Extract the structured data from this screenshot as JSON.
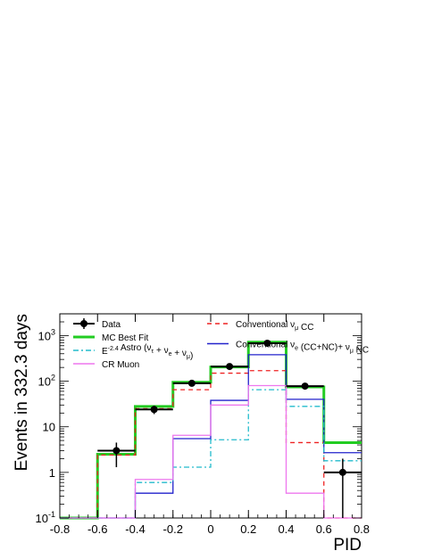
{
  "chart_data": {
    "type": "line",
    "xlabel": "PID",
    "ylabel": "Events in 332.3 days",
    "xlim": [
      -0.8,
      0.8
    ],
    "ylim": [
      0.1,
      3000
    ],
    "yscale": "log",
    "x_ticks": [
      "-0.8",
      "-0.6",
      "-0.4",
      "-0.2",
      "0",
      "0.2",
      "0.4",
      "0.6",
      "0.8"
    ],
    "y_ticks": [
      {
        "base": "10",
        "exp": "-1",
        "value": 0.1
      },
      {
        "base": "1",
        "exp": "",
        "value": 1
      },
      {
        "base": "10",
        "exp": "",
        "value": 10
      },
      {
        "base": "10",
        "exp": "2",
        "value": 100
      },
      {
        "base": "10",
        "exp": "3",
        "value": 1000
      }
    ],
    "bin_edges": [
      -0.8,
      -0.6,
      -0.4,
      -0.2,
      0.0,
      0.2,
      0.4,
      0.6,
      0.8
    ],
    "series": [
      {
        "key": "mc",
        "name": "MC Best Fit",
        "kind": "hist",
        "color": "#22cc22",
        "dash": "",
        "values": [
          0.1,
          2.5,
          28,
          95,
          205,
          720,
          75,
          4.5
        ]
      },
      {
        "key": "conv_numu",
        "name": "Conventional ν_μ CC",
        "kind": "hist",
        "color": "#ee2222",
        "dash": "5,4",
        "values": [
          0.1,
          2.4,
          25,
          65,
          150,
          170,
          4.5,
          0.1
        ]
      },
      {
        "key": "conv_nue",
        "name": "Conventional ν_e (CC+NC)+ ν_μ NC",
        "kind": "hist",
        "color": "#2222cc",
        "dash": "",
        "values": [
          0.1,
          0.1,
          0.35,
          5.5,
          38,
          380,
          40,
          2.7
        ]
      },
      {
        "key": "astro",
        "name": "E^-2.4 Astro (ν_τ + ν_e + ν_μ)",
        "kind": "hist",
        "color": "#22bbcc",
        "dash": "6,3,2,3",
        "values": [
          0.1,
          0.1,
          0.6,
          1.3,
          5.2,
          65,
          28,
          1.8
        ]
      },
      {
        "key": "crmuon",
        "name": "CR Muon",
        "kind": "hist",
        "color": "#ee77ee",
        "dash": "",
        "values": [
          0.1,
          0.1,
          0.7,
          6.5,
          30,
          80,
          0.35,
          0.1
        ]
      },
      {
        "key": "data",
        "name": "Data",
        "kind": "points",
        "color": "#000000",
        "x": [
          -0.5,
          -0.3,
          -0.1,
          0.1,
          0.3,
          0.5,
          0.7
        ],
        "values": [
          3,
          24,
          90,
          210,
          680,
          78,
          1
        ],
        "err_low": [
          1.3,
          19,
          80,
          195,
          655,
          69,
          0.1
        ],
        "err_high": [
          4.5,
          29,
          100,
          225,
          705,
          87,
          2
        ]
      }
    ],
    "legend": {
      "placement": "top-left",
      "entries": [
        {
          "series": "data",
          "label": "Data",
          "col": 0,
          "row": 0,
          "parts": [
            {
              "t": "Data"
            }
          ]
        },
        {
          "series": "mc",
          "label": "MC Best Fit",
          "col": 0,
          "row": 1,
          "parts": [
            {
              "t": "MC Best Fit"
            }
          ]
        },
        {
          "series": "astro",
          "label": "E-2.4 Astro (ντ + νe + νμ)",
          "col": 0,
          "row": 2,
          "parts": [
            {
              "t": "E"
            },
            {
              "t": "-2.4",
              "sup": true
            },
            {
              "t": " Astro (ν"
            },
            {
              "t": "τ",
              "sub": true
            },
            {
              "t": " + ν"
            },
            {
              "t": "e",
              "sub": true
            },
            {
              "t": " + ν"
            },
            {
              "t": "μ",
              "sub": true
            },
            {
              "t": ")"
            }
          ]
        },
        {
          "series": "crmuon",
          "label": "CR Muon",
          "col": 0,
          "row": 3,
          "parts": [
            {
              "t": "CR Muon"
            }
          ]
        },
        {
          "series": "conv_numu",
          "label": "Conventional νμ CC",
          "col": 1,
          "row": 0,
          "parts": [
            {
              "t": "Conventional ν"
            },
            {
              "t": "μ",
              "sub": true
            },
            {
              "t": " CC"
            }
          ]
        },
        {
          "series": "conv_nue",
          "label": "Conventional νe (CC+NC)+ νμ NC",
          "col": 1,
          "row": 1.5,
          "parts": [
            {
              "t": "Conventional ν"
            },
            {
              "t": "e",
              "sub": true
            },
            {
              "t": " (CC+NC)+ ν"
            },
            {
              "t": "μ",
              "sub": true
            },
            {
              "t": " NC"
            }
          ]
        }
      ]
    }
  }
}
